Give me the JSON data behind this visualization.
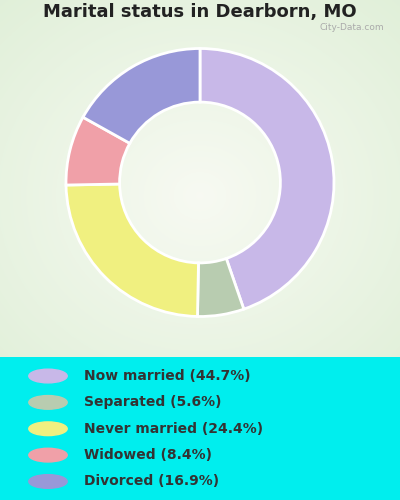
{
  "title": "Marital status in Dearborn, MO",
  "slices": [
    {
      "label": "Now married (44.7%)",
      "value": 44.7,
      "color": "#c8b8e8"
    },
    {
      "label": "Separated (5.6%)",
      "value": 5.6,
      "color": "#b8ccb0"
    },
    {
      "label": "Never married (24.4%)",
      "value": 24.4,
      "color": "#f0f080"
    },
    {
      "label": "Widowed (8.4%)",
      "value": 8.4,
      "color": "#f0a0a8"
    },
    {
      "label": "Divorced (16.9%)",
      "value": 16.9,
      "color": "#9898d8"
    }
  ],
  "bg_outer": "#00eeee",
  "bg_legend": "#00eeee",
  "title_color": "#222222",
  "legend_text_color": "#333333",
  "start_angle": 90,
  "title_fontsize": 13,
  "legend_fontsize": 10,
  "watermark": "City-Data.com"
}
